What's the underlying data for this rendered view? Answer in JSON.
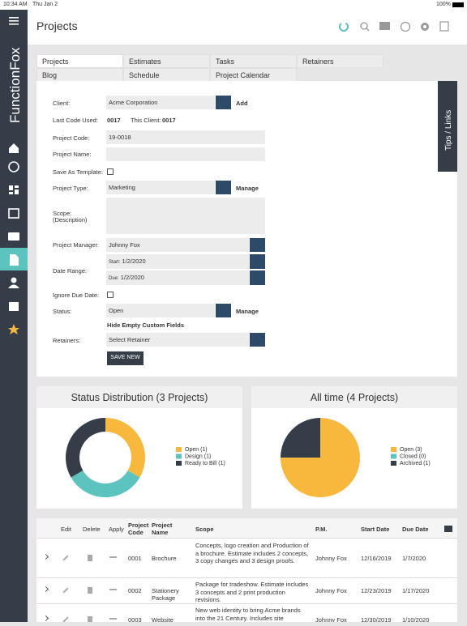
{
  "status_bar": {
    "time": "10:34 AM",
    "date": "Thu Jan 2",
    "battery": "100%"
  },
  "sidebar": {
    "brand": "FunctionFox"
  },
  "header": {
    "title": "Projects"
  },
  "tabs": [
    "Projects",
    "Estimates",
    "Tasks",
    "Retainers",
    "Blog",
    "Schedule",
    "Project Calendar"
  ],
  "tips": "Tips / Links",
  "form": {
    "client_label": "Client:",
    "client": "Acme Corporation",
    "add": "Add",
    "last_code_label": "Last Code Used:",
    "last_code": "0017",
    "this_client_label": "This Client:",
    "this_client": "0017",
    "code_label": "Project Code:",
    "code": "19-0018",
    "name_label": "Project Name:",
    "template_label": "Save As Template:",
    "type_label": "Project Type:",
    "type": "Marketing",
    "manage": "Manage",
    "scope_label": "Scope:",
    "scope_sub": "(Description)",
    "pm_label": "Project Manager:",
    "pm": "Johnny Fox",
    "date_label": "Date Range:",
    "start_label": "Start:",
    "start": "1/2/2020",
    "due_label": "Due:",
    "due": "1/2/2020",
    "ignore_label": "Ignore Due Date:",
    "status_label": "Status:",
    "status": "Open",
    "status_manage": "Manage",
    "hide_fields": "Hide Empty Custom Fields",
    "retainers_label": "Retainers:",
    "retainer": "Select Retainer",
    "save": "SAVE NEW"
  },
  "chart_data": [
    {
      "type": "pie",
      "title": "Status Distribution (3 Projects)",
      "donut": true,
      "categories": [
        "Open (1)",
        "Design (1)",
        "Ready to Bill (1)"
      ],
      "values": [
        1,
        1,
        1
      ],
      "colors": [
        "#f8b83e",
        "#5cc3be",
        "#353d49"
      ]
    },
    {
      "type": "pie",
      "title": "All time (4 Projects)",
      "donut": false,
      "categories": [
        "Open (3)",
        "Closed (0)",
        "Archived (1)"
      ],
      "values": [
        3,
        0,
        1
      ],
      "colors": [
        "#f8b83e",
        "#5cc3be",
        "#353d49"
      ]
    }
  ],
  "table": {
    "columns": [
      "Edit",
      "Delete",
      "Apply",
      "Project Code",
      "Project Name",
      "Scope",
      "P.M.",
      "Start Date",
      "Due Date"
    ],
    "rows": [
      [
        "0001",
        "Brochure",
        "Concepts, logo creation and Production of a brochure. Estimate includes 2 concepts, 3 copy changes and 3 design proofs.",
        "Johnny Fox",
        "12/16/2019",
        "1/7/2020"
      ],
      [
        "0002",
        "Stationery Package",
        "Package for tradeshow. Estimate includes 3 concepts and 2 print production revisions.",
        "Johnny Fox",
        "12/23/2019",
        "1/17/2020"
      ],
      [
        "0003",
        "Website",
        "New web identity to bring Acme brands into the 21 Century. Includes site",
        "Johnny Fox",
        "12/30/2019",
        "1/10/2020"
      ]
    ]
  }
}
